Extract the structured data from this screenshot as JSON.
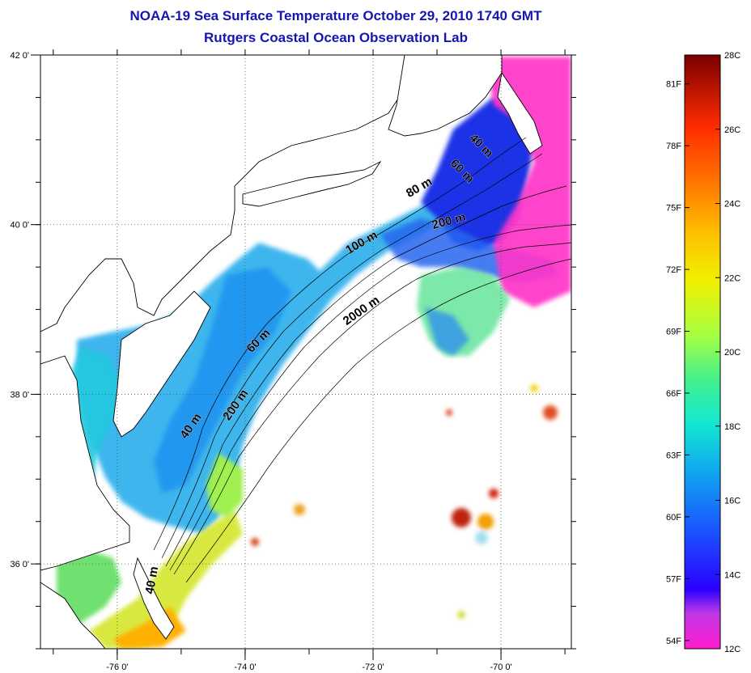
{
  "title": {
    "line1": "NOAA-19 Sea Surface Temperature October 29, 2010 1740 GMT",
    "line2": "Rutgers Coastal Ocean Observation Lab"
  },
  "axes": {
    "longitude": {
      "min": -77.2,
      "max": -68.9,
      "ticks": [
        {
          "value": -76,
          "label": "-76 0'"
        },
        {
          "value": -74,
          "label": "-74 0'"
        },
        {
          "value": -72,
          "label": "-72 0'"
        },
        {
          "value": -70,
          "label": "-70 0'"
        }
      ]
    },
    "latitude": {
      "min": 35.0,
      "max": 42.0,
      "ticks": [
        {
          "value": 42,
          "label": "42 0'"
        },
        {
          "value": 40,
          "label": "40 0'"
        },
        {
          "value": 38,
          "label": "38 0'"
        },
        {
          "value": 36,
          "label": "36 0'"
        }
      ]
    },
    "grid": "dotted"
  },
  "isobath_labels": [
    {
      "text": "40 m",
      "lon": -70.35,
      "lat": 40.9,
      "rot": 45
    },
    {
      "text": "60 m",
      "lon": -70.65,
      "lat": 40.6,
      "rot": 45
    },
    {
      "text": "80 m",
      "lon": -71.25,
      "lat": 40.4,
      "rot": -30
    },
    {
      "text": "200 m",
      "lon": -70.8,
      "lat": 40.0,
      "rot": -15
    },
    {
      "text": "100 m",
      "lon": -72.15,
      "lat": 39.75,
      "rot": -30
    },
    {
      "text": "2000 m",
      "lon": -72.15,
      "lat": 38.95,
      "rot": -35
    },
    {
      "text": "60 m",
      "lon": -73.75,
      "lat": 38.6,
      "rot": -45
    },
    {
      "text": "200 m",
      "lon": -74.1,
      "lat": 37.85,
      "rot": -55
    },
    {
      "text": "40 m",
      "lon": -74.8,
      "lat": 37.6,
      "rot": -55
    },
    {
      "text": "40 m",
      "lon": -75.4,
      "lat": 35.8,
      "rot": -80
    }
  ],
  "colorbar": {
    "celsius_min": 12,
    "celsius_max": 28,
    "celsius_ticks": [
      "28C",
      "26C",
      "24C",
      "22C",
      "20C",
      "18C",
      "16C",
      "14C",
      "12C"
    ],
    "fahrenheit_min": 53.6,
    "fahrenheit_max": 82.4,
    "fahrenheit_ticks": [
      "81F",
      "78F",
      "75F",
      "72F",
      "69F",
      "66F",
      "63F",
      "60F",
      "57F",
      "54F"
    ],
    "stops": [
      {
        "t": 0.0,
        "color": "#ff1cd0"
      },
      {
        "t": 0.06,
        "color": "#c038e6"
      },
      {
        "t": 0.1,
        "color": "#2a00ff"
      },
      {
        "t": 0.2,
        "color": "#1a55ff"
      },
      {
        "t": 0.3,
        "color": "#10a8f0"
      },
      {
        "t": 0.38,
        "color": "#14e8d0"
      },
      {
        "t": 0.45,
        "color": "#40f090"
      },
      {
        "t": 0.53,
        "color": "#a8ff40"
      },
      {
        "t": 0.62,
        "color": "#f0f000"
      },
      {
        "t": 0.7,
        "color": "#ffc000"
      },
      {
        "t": 0.78,
        "color": "#ff7a00"
      },
      {
        "t": 0.88,
        "color": "#ff2a00"
      },
      {
        "t": 1.0,
        "color": "#7a0000"
      }
    ]
  },
  "colors": {
    "title": "#1515b0",
    "coastline": "#000000",
    "shelf": "#2a9af0",
    "cold_core": "#1a33e6",
    "gulf_stream": "#6ee6a0",
    "magenta": "#ff35c8",
    "warm": "#e05020"
  }
}
